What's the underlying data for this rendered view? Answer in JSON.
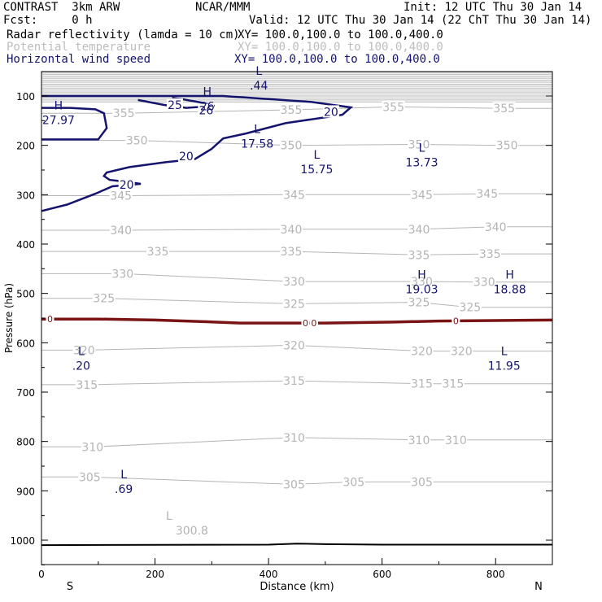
{
  "header": {
    "model": "CONTRAST  3km ARW",
    "center": "NCAR/MMM",
    "init": "Init: 12 UTC Thu 30 Jan 14",
    "fcst": "Fcst:     0 h",
    "valid": "Valid: 12 UTC Thu 30 Jan 14 (22 ChT Thu 30 Jan 14)",
    "fields": [
      {
        "name": "Radar reflectivity (lamda = 10 cm)",
        "xy": "XY= 100.0,100.0 to 100.0,400.0",
        "color": "#000000"
      },
      {
        "name": "Potential temperature",
        "xy": "XY= 100.0,100.0 to 100.0,400.0",
        "color": "#bdbdbd"
      },
      {
        "name": "Horizontal wind speed",
        "xy": "XY= 100.0,100.0 to 100.0,400.0",
        "color": "#14146e"
      }
    ]
  },
  "chart_data": {
    "type": "contour-cross-section",
    "xlabel": "Distance (km)",
    "ylabel": "Pressure (hPa)",
    "xlim": [
      0,
      900
    ],
    "ylim": [
      1050,
      50
    ],
    "x_ticks": [
      "0",
      "200",
      "400",
      "600",
      "800"
    ],
    "x_tick_values": [
      0,
      200,
      400,
      600,
      800
    ],
    "y_ticks": [
      "100",
      "200",
      "300",
      "400",
      "500",
      "600",
      "700",
      "800",
      "900",
      "1000"
    ],
    "y_tick_values": [
      100,
      200,
      300,
      400,
      500,
      600,
      700,
      800,
      900,
      1000
    ],
    "left_end": "S",
    "right_end": "N",
    "theta_labels": [
      {
        "text": "355",
        "x": 145,
        "p": 135
      },
      {
        "text": "355",
        "x": 440,
        "p": 128
      },
      {
        "text": "355",
        "x": 620,
        "p": 122
      },
      {
        "text": "355",
        "x": 815,
        "p": 125
      },
      {
        "text": "350",
        "x": 168,
        "p": 190
      },
      {
        "text": "350",
        "x": 440,
        "p": 200
      },
      {
        "text": "350",
        "x": 665,
        "p": 198
      },
      {
        "text": "350",
        "x": 820,
        "p": 200
      },
      {
        "text": "345",
        "x": 140,
        "p": 302
      },
      {
        "text": "345",
        "x": 445,
        "p": 300
      },
      {
        "text": "345",
        "x": 670,
        "p": 300
      },
      {
        "text": "345",
        "x": 785,
        "p": 298
      },
      {
        "text": "340",
        "x": 140,
        "p": 372
      },
      {
        "text": "340",
        "x": 440,
        "p": 370
      },
      {
        "text": "340",
        "x": 665,
        "p": 370
      },
      {
        "text": "340",
        "x": 800,
        "p": 365
      },
      {
        "text": "335",
        "x": 205,
        "p": 415
      },
      {
        "text": "335",
        "x": 440,
        "p": 415
      },
      {
        "text": "335",
        "x": 665,
        "p": 422
      },
      {
        "text": "335",
        "x": 790,
        "p": 420
      },
      {
        "text": "330",
        "x": 143,
        "p": 460
      },
      {
        "text": "330",
        "x": 445,
        "p": 476
      },
      {
        "text": "330",
        "x": 670,
        "p": 476
      },
      {
        "text": "330",
        "x": 780,
        "p": 477
      },
      {
        "text": "325",
        "x": 110,
        "p": 510
      },
      {
        "text": "325",
        "x": 445,
        "p": 521
      },
      {
        "text": "325",
        "x": 665,
        "p": 518
      },
      {
        "text": "325",
        "x": 755,
        "p": 528
      },
      {
        "text": "320",
        "x": 75,
        "p": 615
      },
      {
        "text": "320",
        "x": 445,
        "p": 605
      },
      {
        "text": "320",
        "x": 670,
        "p": 617
      },
      {
        "text": "320",
        "x": 740,
        "p": 617
      },
      {
        "text": "315",
        "x": 80,
        "p": 685
      },
      {
        "text": "315",
        "x": 445,
        "p": 677
      },
      {
        "text": "315",
        "x": 670,
        "p": 683
      },
      {
        "text": "315",
        "x": 725,
        "p": 683
      },
      {
        "text": "310",
        "x": 90,
        "p": 811
      },
      {
        "text": "310",
        "x": 445,
        "p": 792
      },
      {
        "text": "310",
        "x": 665,
        "p": 797
      },
      {
        "text": "310",
        "x": 730,
        "p": 797
      },
      {
        "text": "305",
        "x": 85,
        "p": 872
      },
      {
        "text": "305",
        "x": 445,
        "p": 887
      },
      {
        "text": "305",
        "x": 550,
        "p": 882
      },
      {
        "text": "305",
        "x": 670,
        "p": 882
      }
    ],
    "theta_extrema": [
      {
        "mark": "L",
        "value": "300.8",
        "x": 265,
        "p": 975
      }
    ],
    "wind_labels": [
      {
        "text": "25",
        "x": 235,
        "p": 118
      },
      {
        "text": "26",
        "x": 290,
        "p": 129
      },
      {
        "text": "20",
        "x": 510,
        "p": 132
      },
      {
        "text": "20",
        "x": 255,
        "p": 222
      },
      {
        "text": "20",
        "x": 150,
        "p": 280
      }
    ],
    "wind_extrema": [
      {
        "mark": "L",
        "value": ".44",
        "x": 383,
        "p": 62
      },
      {
        "mark": "H",
        "value": "26",
        "x": 292,
        "p": 104
      },
      {
        "mark": "H",
        "value": "27.97",
        "x": 30,
        "p": 132
      },
      {
        "mark": "L",
        "value": "17.58",
        "x": 380,
        "p": 180
      },
      {
        "mark": "L",
        "value": "15.75",
        "x": 485,
        "p": 232
      },
      {
        "mark": "L",
        "value": "13.73",
        "x": 670,
        "p": 218
      },
      {
        "mark": "H",
        "value": "19.03",
        "x": 670,
        "p": 475
      },
      {
        "mark": "H",
        "value": "18.88",
        "x": 825,
        "p": 475
      },
      {
        "mark": "L",
        "value": ".20",
        "x": 70,
        "p": 630
      },
      {
        "mark": "L",
        "value": "11.95",
        "x": 815,
        "p": 630
      },
      {
        "mark": "L",
        "value": ".69",
        "x": 145,
        "p": 880
      }
    ],
    "wind_contours": [
      {
        "level": 20,
        "points": [
          [
            0,
            333
          ],
          [
            45,
            320
          ],
          [
            95,
            298
          ],
          [
            125,
            283
          ],
          [
            175,
            278
          ],
          [
            150,
            274
          ],
          [
            120,
            270
          ],
          [
            110,
            262
          ],
          [
            115,
            255
          ],
          [
            155,
            244
          ],
          [
            220,
            234
          ],
          [
            270,
            228
          ],
          [
            300,
            207
          ],
          [
            320,
            186
          ],
          [
            360,
            176
          ],
          [
            430,
            155
          ],
          [
            530,
            138
          ],
          [
            545,
            123
          ],
          [
            475,
            112
          ],
          [
            320,
            100
          ],
          [
            0,
            100
          ]
        ]
      },
      {
        "level": 20,
        "points": [
          [
            0,
            188
          ],
          [
            100,
            188
          ],
          [
            115,
            165
          ],
          [
            110,
            135
          ],
          [
            95,
            127
          ],
          [
            50,
            124
          ],
          [
            0,
            124
          ]
        ]
      },
      {
        "level": 25,
        "points": [
          [
            170,
            108
          ],
          [
            215,
            118
          ],
          [
            255,
            124
          ],
          [
            305,
            120
          ],
          [
            280,
            113
          ],
          [
            250,
            107
          ],
          [
            230,
            104
          ]
        ]
      }
    ],
    "reflectivity_contours": [
      {
        "level": 0,
        "points": [
          [
            0,
            552
          ],
          [
            100,
            552
          ],
          [
            200,
            554
          ],
          [
            280,
            557
          ],
          [
            350,
            560
          ],
          [
            500,
            560
          ],
          [
            620,
            558
          ],
          [
            700,
            556
          ],
          [
            800,
            555
          ],
          [
            900,
            554
          ]
        ]
      }
    ],
    "zero_labels": [
      {
        "text": "0",
        "x": 15,
        "p": 552
      },
      {
        "text": "0",
        "x": 465,
        "p": 560
      },
      {
        "text": "0",
        "x": 480,
        "p": 560
      },
      {
        "text": "0",
        "x": 730,
        "p": 556
      }
    ],
    "surface_line": [
      [
        0,
        1010
      ],
      [
        400,
        1009
      ],
      [
        450,
        1007
      ],
      [
        500,
        1008
      ],
      [
        600,
        1009
      ],
      [
        900,
        1009
      ]
    ],
    "colors": {
      "theta": "#b4b4b4",
      "wind": "#14146e",
      "refl": "#7a1414",
      "frame": "#000000"
    }
  }
}
